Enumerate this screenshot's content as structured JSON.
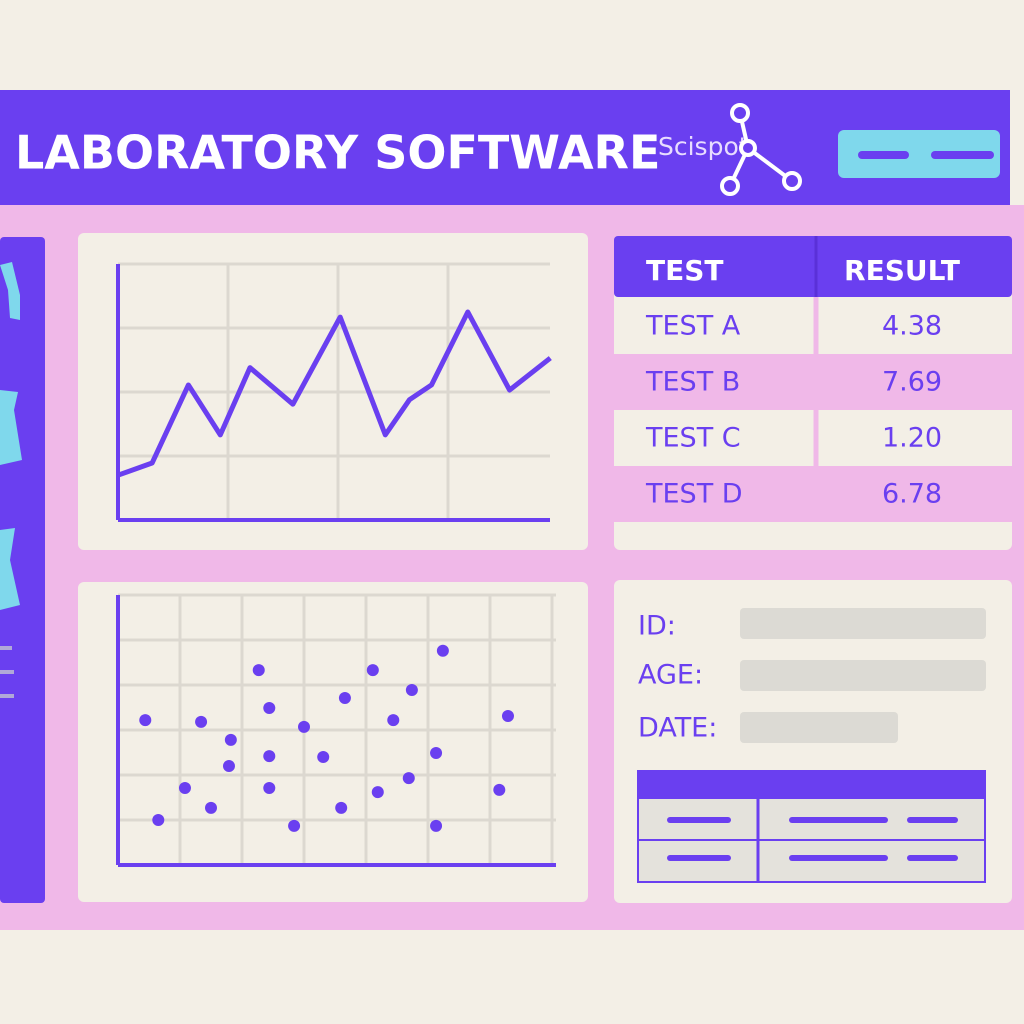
{
  "header": {
    "title": "LABORATORY SOFTWARE",
    "logo": "Scispot"
  },
  "chart_data": [
    {
      "type": "line",
      "color": "#6a3ff0",
      "grid": true,
      "x": [
        0,
        0.31,
        0.64,
        0.93,
        1.2,
        1.59,
        2.02,
        2.43,
        2.65,
        2.85,
        3.18,
        3.56,
        3.93
      ],
      "values": [
        0.7,
        0.89,
        2.11,
        1.33,
        2.38,
        1.81,
        3.17,
        1.33,
        1.88,
        2.11,
        3.25,
        2.03,
        2.53
      ],
      "xlim": [
        0,
        4
      ],
      "ylim": [
        0,
        4
      ],
      "xticks": [
        1,
        2,
        3
      ],
      "yticks": [
        1,
        2,
        3,
        4
      ]
    },
    {
      "type": "scatter",
      "color": "#6a3ff0",
      "grid": true,
      "x": [
        0.44,
        0.65,
        1.08,
        1.34,
        1.5,
        1.79,
        1.82,
        2.27,
        2.44,
        2.44,
        2.44,
        2.84,
        3.0,
        3.31,
        3.6,
        3.66,
        4.11,
        4.19,
        4.44,
        4.69,
        4.74,
        5.13,
        5.13,
        5.24,
        6.15,
        6.29
      ],
      "values": [
        3.22,
        1.0,
        1.71,
        3.18,
        1.27,
        2.2,
        2.78,
        4.33,
        3.49,
        2.42,
        1.71,
        0.87,
        3.07,
        2.4,
        1.27,
        3.71,
        4.33,
        1.62,
        3.22,
        1.93,
        3.89,
        2.49,
        0.87,
        4.76,
        1.67,
        3.31
      ],
      "xlim": [
        0,
        7
      ],
      "ylim": [
        0,
        6
      ],
      "xticks": [
        1,
        2,
        3,
        4,
        5,
        6,
        7
      ],
      "yticks": [
        1,
        2,
        3,
        4,
        5,
        6
      ]
    }
  ],
  "table": {
    "header": [
      "TEST",
      "RESULT"
    ],
    "rows": [
      [
        "TEST A",
        "4.38"
      ],
      [
        "TEST B",
        "7.69"
      ],
      [
        "TEST C",
        "1.20"
      ],
      [
        "TEST D",
        "6.78"
      ]
    ]
  },
  "form": {
    "labels": [
      "ID:",
      "AGE:",
      "DATE:"
    ]
  }
}
